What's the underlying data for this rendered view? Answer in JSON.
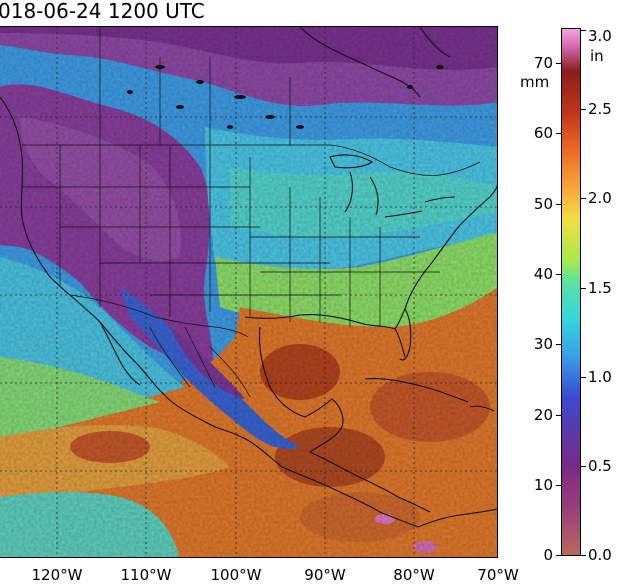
{
  "title": "018-06-24 1200 UTC",
  "longitude_labels": [
    "120°W",
    "110°W",
    "100°W",
    "90°W",
    "80°W",
    "70°W"
  ],
  "colorbar": {
    "left_unit": "mm",
    "right_unit": "in",
    "mm_ticks": [
      "0",
      "10",
      "20",
      "30",
      "40",
      "50",
      "60",
      "70"
    ],
    "in_ticks": [
      "0.0",
      "0.5",
      "1.0",
      "1.5",
      "2.0",
      "2.5",
      "3.0"
    ],
    "colors": [
      "#b86a5a",
      "#9a3d7c",
      "#7a2a86",
      "#3a4ad0",
      "#3aa0e8",
      "#33d7dd",
      "#a6ea4a",
      "#f4dd44",
      "#ea6a22",
      "#8a1e1a",
      "#f1a4dc"
    ]
  },
  "map_colors": {
    "dry": "#7c3a96",
    "moderate": "#46aee8",
    "humid": "#e0792c",
    "very_humid": "#a53a22"
  }
}
